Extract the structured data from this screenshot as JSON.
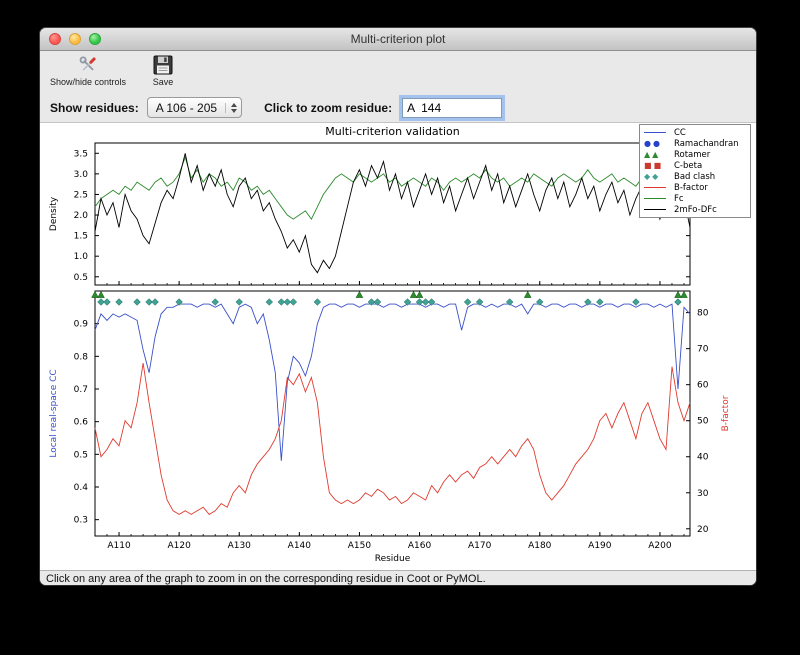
{
  "window": {
    "title": "Multi-criterion plot"
  },
  "toolbar": {
    "show_hide_label": "Show/hide controls",
    "save_label": "Save"
  },
  "controls": {
    "show_residues_label": "Show residues:",
    "residues_value": "A 106 - 205",
    "zoom_label": "Click to zoom residue:",
    "zoom_value": "A  144"
  },
  "status": {
    "text": "Click on any area of the graph to zoom in on the corresponding residue in Coot or PyMOL."
  },
  "legend": {
    "entries": [
      {
        "label": "CC",
        "symbol": "line",
        "color": "#3a50c8"
      },
      {
        "label": "Ramachandran",
        "symbol": "circle",
        "color": "#2742c8"
      },
      {
        "label": "Rotamer",
        "symbol": "triangle",
        "color": "#2d8a2d"
      },
      {
        "label": "C-beta",
        "symbol": "square",
        "color": "#cc3a2e"
      },
      {
        "label": "Bad clash",
        "symbol": "diamond",
        "color": "#3fa295"
      },
      {
        "label": "B-factor",
        "symbol": "line",
        "color": "#e03a2e"
      },
      {
        "label": "Fc",
        "symbol": "line",
        "color": "#2d8a2d"
      },
      {
        "label": "2mFo-DFc",
        "symbol": "line",
        "color": "#000000"
      }
    ]
  },
  "chart_data": [
    {
      "type": "line",
      "title": "Multi-criterion validation",
      "x_range": [
        106,
        205
      ],
      "ylabel": "Density",
      "ylim": [
        0.3,
        3.75
      ],
      "yticks": [
        0.5,
        1.0,
        1.5,
        2.0,
        2.5,
        3.0,
        3.5
      ],
      "series": [
        {
          "name": "Fc",
          "color": "#2d8a2d",
          "values": [
            2.2,
            2.4,
            2.5,
            2.6,
            2.5,
            2.7,
            2.6,
            2.8,
            2.7,
            2.6,
            2.8,
            2.9,
            2.7,
            2.8,
            3.0,
            3.4,
            2.9,
            3.1,
            2.8,
            3.0,
            2.9,
            2.7,
            2.8,
            2.6,
            2.9,
            2.8,
            2.6,
            2.7,
            2.5,
            2.6,
            2.4,
            2.2,
            2.0,
            1.9,
            2.0,
            2.1,
            1.9,
            2.2,
            2.5,
            2.7,
            2.9,
            3.0,
            2.9,
            2.8,
            3.0,
            2.9,
            2.8,
            2.9,
            3.0,
            2.8,
            2.9,
            2.7,
            2.8,
            2.9,
            2.8,
            2.7,
            2.9,
            2.8,
            2.6,
            2.8,
            2.9,
            2.8,
            2.9,
            3.0,
            2.9,
            3.1,
            2.9,
            2.8,
            2.9,
            2.7,
            2.8,
            2.9,
            2.8,
            3.0,
            2.9,
            2.8,
            2.7,
            2.9,
            3.0,
            2.9,
            2.8,
            2.9,
            3.1,
            2.9,
            2.8,
            2.9,
            3.0,
            2.8,
            2.9,
            2.8,
            2.7,
            2.9,
            2.8,
            2.9,
            2.8,
            3.4,
            2.9,
            2.7,
            2.8,
            2.6
          ]
        },
        {
          "name": "2mFo-DFc",
          "color": "#000000",
          "values": [
            1.6,
            2.4,
            2.0,
            2.3,
            1.7,
            2.5,
            2.1,
            1.9,
            1.5,
            1.3,
            1.8,
            2.3,
            2.6,
            2.4,
            2.9,
            3.5,
            2.8,
            3.2,
            2.6,
            3.0,
            2.7,
            3.1,
            2.5,
            2.2,
            2.7,
            2.9,
            2.4,
            2.6,
            2.1,
            2.3,
            1.9,
            1.6,
            1.2,
            1.4,
            1.1,
            1.5,
            0.8,
            0.6,
            0.9,
            0.7,
            1.0,
            1.6,
            2.2,
            2.8,
            3.1,
            2.7,
            3.2,
            2.9,
            3.3,
            2.6,
            3.0,
            2.4,
            2.8,
            2.2,
            2.6,
            3.0,
            2.5,
            2.9,
            2.3,
            2.7,
            2.1,
            2.5,
            2.9,
            2.4,
            2.8,
            3.2,
            2.6,
            3.0,
            2.3,
            2.7,
            2.2,
            2.6,
            3.0,
            2.5,
            2.1,
            2.6,
            2.9,
            2.4,
            2.8,
            2.2,
            2.5,
            2.9,
            2.4,
            2.7,
            2.1,
            2.5,
            2.8,
            2.3,
            2.6,
            2.0,
            2.4,
            2.7,
            2.2,
            2.5,
            1.9,
            2.3,
            2.6,
            2.1,
            2.4,
            1.7
          ]
        }
      ]
    },
    {
      "type": "line",
      "x_range": [
        106,
        205
      ],
      "xlabel": "Residue",
      "xticks": [
        "A110",
        "A120",
        "A130",
        "A140",
        "A150",
        "A160",
        "A170",
        "A180",
        "A190",
        "A200"
      ],
      "xtick_residues": [
        110,
        120,
        130,
        140,
        150,
        160,
        170,
        180,
        190,
        200
      ],
      "ylabel_left": "Local real-space CC",
      "ylabel_left_color": "#3a50c8",
      "ylim_left": [
        0.25,
        1.0
      ],
      "yticks_left": [
        0.3,
        0.4,
        0.5,
        0.6,
        0.7,
        0.8,
        0.9
      ],
      "ylabel_right": "B-factor",
      "ylabel_right_color": "#e03a2e",
      "ylim_right": [
        18,
        86
      ],
      "yticks_right": [
        20,
        30,
        40,
        50,
        60,
        70,
        80
      ],
      "series": [
        {
          "name": "CC",
          "axis": "left",
          "color": "#3a50c8",
          "values": [
            0.88,
            0.93,
            0.91,
            0.93,
            0.92,
            0.93,
            0.92,
            0.91,
            0.82,
            0.75,
            0.86,
            0.93,
            0.95,
            0.95,
            0.96,
            0.96,
            0.96,
            0.95,
            0.96,
            0.96,
            0.95,
            0.96,
            0.93,
            0.9,
            0.95,
            0.96,
            0.95,
            0.9,
            0.93,
            0.85,
            0.75,
            0.48,
            0.72,
            0.8,
            0.78,
            0.74,
            0.8,
            0.9,
            0.95,
            0.96,
            0.96,
            0.95,
            0.96,
            0.96,
            0.95,
            0.96,
            0.96,
            0.96,
            0.95,
            0.96,
            0.96,
            0.95,
            0.96,
            0.96,
            0.96,
            0.95,
            0.96,
            0.96,
            0.95,
            0.96,
            0.96,
            0.88,
            0.95,
            0.96,
            0.96,
            0.95,
            0.96,
            0.95,
            0.96,
            0.96,
            0.95,
            0.96,
            0.93,
            0.96,
            0.96,
            0.95,
            0.96,
            0.96,
            0.95,
            0.96,
            0.96,
            0.95,
            0.96,
            0.96,
            0.95,
            0.96,
            0.96,
            0.95,
            0.96,
            0.96,
            0.95,
            0.96,
            0.96,
            0.95,
            0.96,
            0.95,
            0.96,
            0.7,
            0.95,
            0.93
          ]
        },
        {
          "name": "B-factor",
          "axis": "right",
          "color": "#e03a2e",
          "values": [
            48,
            40,
            42,
            45,
            43,
            50,
            48,
            55,
            66,
            55,
            45,
            35,
            28,
            25,
            24,
            25,
            24,
            25,
            26,
            24,
            25,
            27,
            26,
            30,
            32,
            30,
            35,
            38,
            40,
            42,
            45,
            50,
            62,
            60,
            63,
            58,
            62,
            55,
            40,
            30,
            28,
            27,
            28,
            27,
            28,
            30,
            29,
            31,
            30,
            28,
            29,
            27,
            28,
            30,
            29,
            28,
            32,
            30,
            33,
            35,
            33,
            35,
            36,
            34,
            37,
            38,
            40,
            38,
            40,
            42,
            40,
            43,
            45,
            42,
            35,
            30,
            28,
            30,
            32,
            35,
            38,
            40,
            42,
            45,
            50,
            52,
            48,
            52,
            55,
            50,
            45,
            52,
            55,
            50,
            45,
            42,
            65,
            55,
            50,
            55
          ]
        }
      ],
      "markers": [
        {
          "name": "Rotamer",
          "shape": "triangle",
          "color": "#2d8a2d",
          "residues": [
            106,
            107,
            150,
            159,
            160,
            178,
            203,
            204
          ]
        },
        {
          "name": "Bad clash",
          "shape": "diamond",
          "color": "#3fa295",
          "residues": [
            107,
            108,
            110,
            113,
            115,
            116,
            120,
            126,
            130,
            135,
            137,
            138,
            139,
            143,
            152,
            153,
            158,
            160,
            161,
            162,
            168,
            170,
            175,
            180,
            188,
            190,
            196,
            203
          ]
        },
        {
          "name": "Ramachandran",
          "shape": "circle",
          "color": "#2742c8",
          "residues": []
        },
        {
          "name": "C-beta",
          "shape": "square",
          "color": "#cc3a2e",
          "residues": []
        }
      ]
    }
  ]
}
